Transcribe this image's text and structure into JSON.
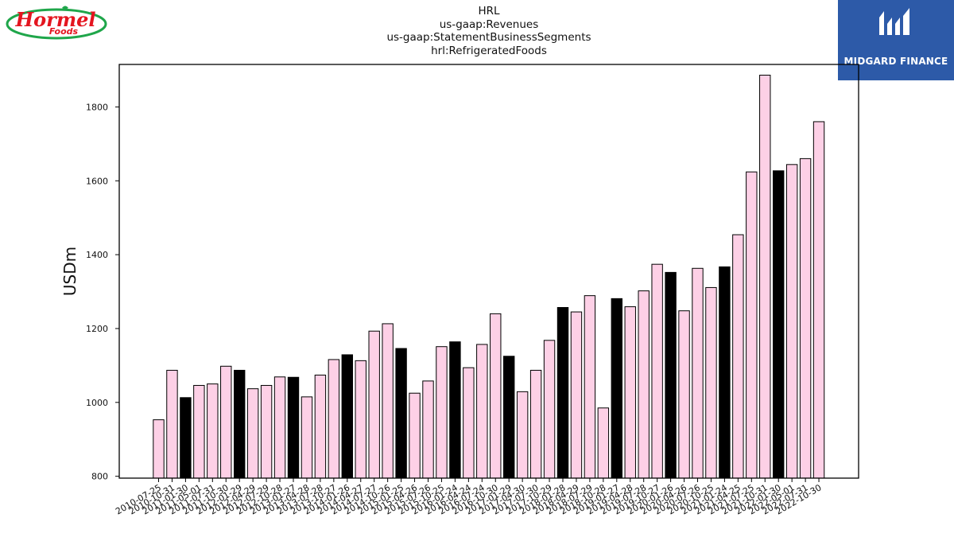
{
  "header": {
    "title_lines": [
      "HRL",
      "us-gaap:Revenues",
      "us-gaap:StatementBusinessSegments",
      "hrl:RefrigeratedFoods"
    ]
  },
  "logos": {
    "left": {
      "text": "Hormel",
      "subtext": "Foods",
      "color": "#e4151f",
      "ring_color": "#1fa64a"
    },
    "right": {
      "text": "MIDGARD FINANCE",
      "background": "#2d5aa8"
    }
  },
  "colors": {
    "highlight": "#000000",
    "normal": "#fdd0e6",
    "edge": "#000000"
  },
  "chart_data": {
    "type": "bar",
    "title": "HRL\nus-gaap:Revenues\nus-gaap:StatementBusinessSegments\nhrl:RefrigeratedFoods",
    "xlabel": "",
    "ylabel": "USDm",
    "ylim": [
      795,
      1915
    ],
    "yticks": [
      800,
      1000,
      1200,
      1400,
      1600,
      1800
    ],
    "grid": false,
    "categories": [
      "2010-07-25",
      "2010-10-31",
      "2011-01-30",
      "2011-05-01",
      "2011-07-31",
      "2011-10-30",
      "2012-01-29",
      "2012-04-29",
      "2012-07-29",
      "2012-10-28",
      "2013-01-27",
      "2013-04-28",
      "2013-07-28",
      "2013-10-27",
      "2014-01-26",
      "2014-04-27",
      "2014-07-27",
      "2014-10-26",
      "2015-01-25",
      "2015-04-26",
      "2015-07-26",
      "2015-10-25",
      "2016-01-24",
      "2016-04-24",
      "2016-07-24",
      "2016-10-30",
      "2017-01-29",
      "2017-04-30",
      "2017-07-30",
      "2017-10-29",
      "2018-01-28",
      "2018-04-29",
      "2018-07-29",
      "2018-10-28",
      "2019-01-27",
      "2019-04-28",
      "2019-07-28",
      "2019-10-27",
      "2020-01-26",
      "2020-04-26",
      "2020-07-26",
      "2020-10-25",
      "2021-01-24",
      "2021-04-25",
      "2021-07-25",
      "2021-10-31",
      "2022-01-30",
      "2022-05-01",
      "2022-07-31",
      "2022-10-30"
    ],
    "values": [
      953,
      1087,
      1013,
      1046,
      1050,
      1098,
      1087,
      1037,
      1046,
      1069,
      1068,
      1015,
      1074,
      1116,
      1129,
      1113,
      1193,
      1213,
      1146,
      1025,
      1058,
      1151,
      1164,
      1094,
      1157,
      1240,
      1125,
      1029,
      1087,
      1168,
      1257,
      1245,
      1289,
      985,
      1281,
      1259,
      1302,
      1374,
      1352,
      1248,
      1363,
      1311,
      1367,
      1454,
      1624,
      1886,
      1627,
      1644,
      1660,
      1760
    ],
    "highlighted": [
      false,
      false,
      true,
      false,
      false,
      false,
      true,
      false,
      false,
      false,
      true,
      false,
      false,
      false,
      true,
      false,
      false,
      false,
      true,
      false,
      false,
      false,
      true,
      false,
      false,
      false,
      true,
      false,
      false,
      false,
      true,
      false,
      false,
      false,
      true,
      false,
      false,
      false,
      true,
      false,
      false,
      false,
      true,
      false,
      false,
      false,
      true,
      false,
      false,
      false
    ]
  }
}
